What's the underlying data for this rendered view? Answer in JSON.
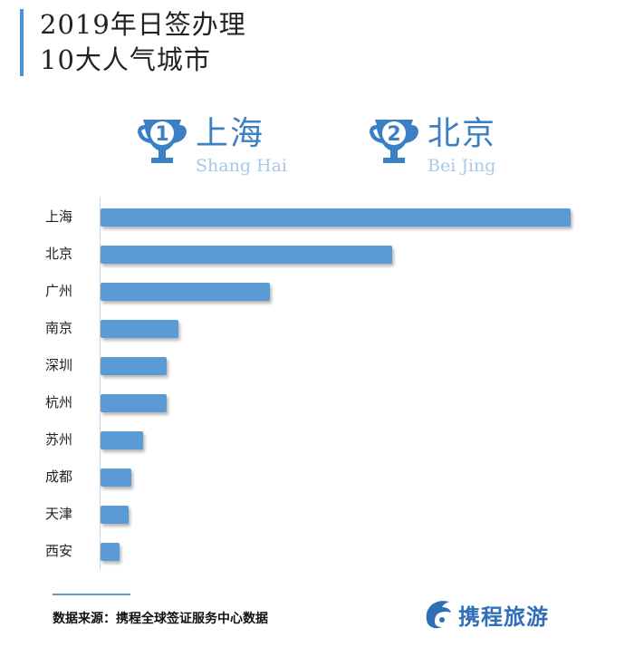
{
  "title_line1": "2019年日签办理",
  "title_line2": "10大人气城市",
  "top_ranks": [
    {
      "rank": "1",
      "name_cn": "上海",
      "name_en": "Shang Hai"
    },
    {
      "rank": "2",
      "name_cn": "北京",
      "name_en": "Bei Jing"
    }
  ],
  "chart_data": {
    "type": "bar",
    "orientation": "horizontal",
    "categories": [
      "上海",
      "北京",
      "广州",
      "南京",
      "深圳",
      "杭州",
      "苏州",
      "成都",
      "天津",
      "西安"
    ],
    "values": [
      100,
      62,
      36,
      16.5,
      14,
      14,
      9,
      6.5,
      6,
      4
    ],
    "xlabel": "",
    "ylabel": "",
    "grid": false
  },
  "source": "数据来源：携程全球签证服务中心数据",
  "logo_text": "携程旅游",
  "colors": {
    "bar": "#5b9bd5",
    "accent": "#3b7fc4",
    "accent_light": "#a9c8ea"
  }
}
